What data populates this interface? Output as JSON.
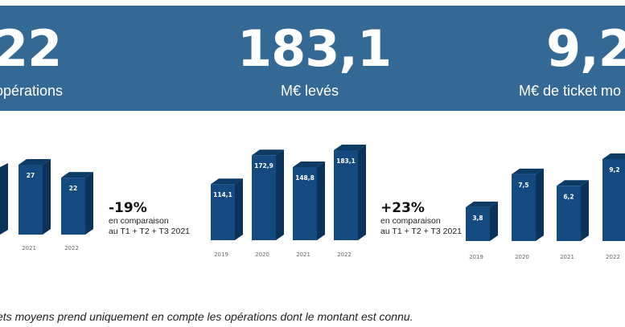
{
  "kpis": [
    {
      "value": "22",
      "label": "opérations"
    },
    {
      "value": "183,1",
      "label": "M€ levés"
    },
    {
      "value": "9,2",
      "label": "M€ de ticket mo"
    }
  ],
  "chart_data": [
    {
      "type": "bar",
      "categories": [
        "2021",
        "2022"
      ],
      "values": [
        27,
        22
      ],
      "value_labels": [
        "27",
        "22"
      ]
    },
    {
      "type": "bar",
      "categories": [
        "2019",
        "2020",
        "2021",
        "2022"
      ],
      "values": [
        114.1,
        172.9,
        148.8,
        183.1
      ],
      "value_labels": [
        "114,1",
        "172,9",
        "148,8",
        "183,1"
      ]
    },
    {
      "type": "bar",
      "categories": [
        "2019",
        "2020",
        "2021",
        "2022"
      ],
      "values": [
        3.8,
        7.5,
        6.2,
        9.2
      ],
      "value_labels": [
        "3,8",
        "7,5",
        "6,2",
        "9,2"
      ]
    }
  ],
  "comparisons": [
    {
      "pct": "-19%",
      "line1": "en comparaison",
      "line2": "au T1 + T2 + T3  2021"
    },
    {
      "pct": "+23%",
      "line1": "en comparaison",
      "line2": "au T1 + T2 + T3  2021"
    }
  ],
  "footer": "ets moyens prend uniquement en compte les opérations dont le montant est connu.",
  "colors": {
    "band": "#346895",
    "bar_front": "#144a80",
    "bar_side": "#0b3259",
    "bar_top": "#0e3a66"
  }
}
